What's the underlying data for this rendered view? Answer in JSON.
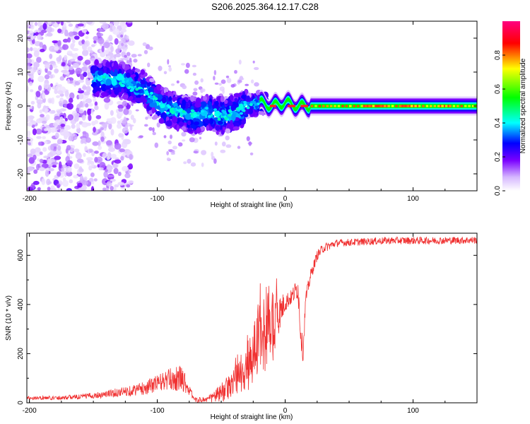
{
  "title": "S206.2025.364.12.17.C28",
  "chart_data": [
    {
      "type": "heatmap",
      "xlabel": "Height of straight line (km)",
      "ylabel": "Frequency (Hz)",
      "xlim": [
        -202,
        150
      ],
      "ylim": [
        -25,
        25
      ],
      "x_ticks": [
        -200,
        -100,
        0,
        100
      ],
      "y_ticks": [
        20,
        10,
        0,
        -10,
        -20
      ],
      "colorbar": {
        "label": "Normalized spectral amplitude",
        "range": [
          0,
          1
        ],
        "ticks": [
          0.0,
          0.2,
          0.4,
          0.6,
          0.8
        ],
        "tick_labels": [
          "0.0",
          "0.2",
          "0.4",
          "0.6",
          "0.8"
        ],
        "colors": [
          "#ffffff",
          "#c8a0ff",
          "#7a00ff",
          "#0000ff",
          "#00ffff",
          "#00ff00",
          "#ffff00",
          "#ff0000",
          "#ff0080"
        ]
      },
      "ridge": {
        "x": [
          -145,
          -130,
          -120,
          -110,
          -100,
          -90,
          -80,
          -70,
          -60,
          -50,
          -40,
          -30,
          -20,
          -10,
          0,
          10,
          20,
          40,
          80,
          150
        ],
        "freq_hz": [
          8,
          8,
          6,
          5,
          1,
          -1,
          -2,
          -3,
          -2,
          -3,
          -2,
          0,
          1,
          0,
          1,
          0,
          0,
          0,
          0,
          0
        ]
      },
      "noise_region": {
        "x_range": [
          -202,
          -130
        ],
        "freq_range": [
          -25,
          25
        ]
      }
    },
    {
      "type": "line",
      "xlabel": "Height of straight line (km)",
      "ylabel": "SNR (10 * v/v)",
      "xlim": [
        -202,
        150
      ],
      "ylim": [
        0,
        690
      ],
      "x_ticks": [
        -200,
        -100,
        0,
        100
      ],
      "y_ticks": [
        0,
        200,
        400,
        600
      ],
      "color": "#ff0000",
      "series": [
        {
          "name": "SNR",
          "x": [
            -202,
            -180,
            -160,
            -140,
            -120,
            -110,
            -100,
            -90,
            -80,
            -75,
            -70,
            -60,
            -50,
            -40,
            -35,
            -30,
            -25,
            -20,
            -15,
            -10,
            -5,
            0,
            5,
            10,
            12,
            14,
            16,
            20,
            25,
            30,
            40,
            60,
            80,
            100,
            120,
            150
          ],
          "y": [
            20,
            20,
            25,
            35,
            50,
            60,
            80,
            95,
            100,
            50,
            10,
            15,
            40,
            80,
            120,
            150,
            200,
            260,
            300,
            330,
            360,
            410,
            430,
            470,
            300,
            200,
            420,
            520,
            600,
            630,
            650,
            655,
            660,
            660,
            660,
            662
          ],
          "noise_amplitude": [
            8,
            8,
            10,
            15,
            22,
            28,
            35,
            45,
            55,
            20,
            10,
            15,
            40,
            60,
            80,
            110,
            140,
            160,
            170,
            170,
            80,
            40,
            30,
            50,
            60,
            40,
            30,
            25,
            20,
            20,
            15,
            15,
            15,
            15,
            15,
            15
          ]
        }
      ]
    }
  ]
}
